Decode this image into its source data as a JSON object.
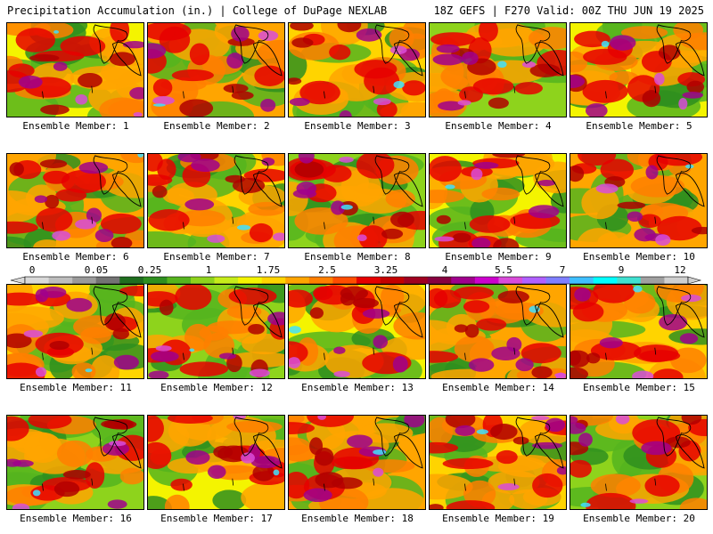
{
  "header": {
    "title_left": "Precipitation Accumulation (in.) | College of DuPage NEXLAB",
    "title_right": "18Z GEFS | F270 Valid: 00Z THU JUN 19 2025"
  },
  "members": [
    "Ensemble Member: 1",
    "Ensemble Member: 2",
    "Ensemble Member: 3",
    "Ensemble Member: 4",
    "Ensemble Member: 5",
    "Ensemble Member: 6",
    "Ensemble Member: 7",
    "Ensemble Member: 8",
    "Ensemble Member: 9",
    "Ensemble Member: 10",
    "Ensemble Member: 11",
    "Ensemble Member: 12",
    "Ensemble Member: 13",
    "Ensemble Member: 14",
    "Ensemble Member: 15",
    "Ensemble Member: 16",
    "Ensemble Member: 17",
    "Ensemble Member: 18",
    "Ensemble Member: 19",
    "Ensemble Member: 20"
  ],
  "colorbar": {
    "ticks": [
      "0",
      "0.05",
      "0.25",
      "1",
      "1.75",
      "2.5",
      "3.25",
      "4",
      "5.5",
      "7",
      "9",
      "12"
    ],
    "colors": [
      "#d9d9d9",
      "#bdbdbd",
      "#9a9a9a",
      "#737373",
      "#1f6e1f",
      "#2f8f1f",
      "#55b41e",
      "#8ed31c",
      "#c6ec1a",
      "#f4f400",
      "#ffd400",
      "#ffa500",
      "#ff7f00",
      "#ff4d00",
      "#e60000",
      "#c40000",
      "#a00020",
      "#870040",
      "#a0008c",
      "#cc00cc",
      "#d94cd9",
      "#b060ff",
      "#7f7fff",
      "#3fbfff",
      "#00ffff",
      "#40e0d0",
      "#a0a0a0",
      "#cfcfcf"
    ]
  }
}
